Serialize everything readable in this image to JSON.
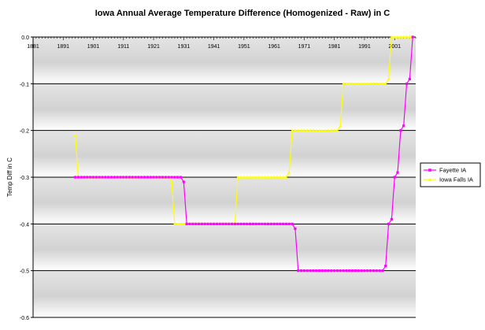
{
  "chart_data": {
    "type": "line",
    "title": "Iowa Annual Average Temperature Difference (Homogenized - Raw) in C",
    "xlabel": "",
    "ylabel": "Temp Diff in C",
    "xlim": [
      1881,
      2008
    ],
    "ylim": [
      -0.6,
      0.0
    ],
    "x_ticks": [
      1881,
      1891,
      1901,
      1911,
      1921,
      1931,
      1941,
      1951,
      1961,
      1971,
      1981,
      1991,
      2001
    ],
    "y_ticks": [
      0.0,
      -0.1,
      -0.2,
      -0.3,
      -0.4,
      -0.5,
      -0.6
    ],
    "y_tick_labels": [
      "0.0",
      "-0.1",
      "-0.2",
      "-0.3",
      "-0.4",
      "-0.5",
      "-0.6"
    ],
    "grid": true,
    "background": "gray-gradient",
    "legend_position": "right",
    "series": [
      {
        "name": "Fayette IA",
        "color": "#ff00ff",
        "marker": "square",
        "points": [
          [
            1895,
            -0.3
          ],
          [
            1896,
            -0.3
          ],
          [
            1897,
            -0.3
          ],
          [
            1898,
            -0.3
          ],
          [
            1899,
            -0.3
          ],
          [
            1900,
            -0.3
          ],
          [
            1901,
            -0.3
          ],
          [
            1902,
            -0.3
          ],
          [
            1903,
            -0.3
          ],
          [
            1904,
            -0.3
          ],
          [
            1905,
            -0.3
          ],
          [
            1906,
            -0.3
          ],
          [
            1907,
            -0.3
          ],
          [
            1908,
            -0.3
          ],
          [
            1909,
            -0.3
          ],
          [
            1910,
            -0.3
          ],
          [
            1911,
            -0.3
          ],
          [
            1912,
            -0.3
          ],
          [
            1913,
            -0.3
          ],
          [
            1914,
            -0.3
          ],
          [
            1915,
            -0.3
          ],
          [
            1916,
            -0.3
          ],
          [
            1917,
            -0.3
          ],
          [
            1918,
            -0.3
          ],
          [
            1919,
            -0.3
          ],
          [
            1920,
            -0.3
          ],
          [
            1921,
            -0.3
          ],
          [
            1922,
            -0.3
          ],
          [
            1923,
            -0.3
          ],
          [
            1924,
            -0.3
          ],
          [
            1925,
            -0.3
          ],
          [
            1926,
            -0.3
          ],
          [
            1927,
            -0.3
          ],
          [
            1928,
            -0.3
          ],
          [
            1929,
            -0.3
          ],
          [
            1930,
            -0.3
          ],
          [
            1931,
            -0.31
          ],
          [
            1932,
            -0.4
          ],
          [
            1933,
            -0.4
          ],
          [
            1934,
            -0.4
          ],
          [
            1935,
            -0.4
          ],
          [
            1936,
            -0.4
          ],
          [
            1937,
            -0.4
          ],
          [
            1938,
            -0.4
          ],
          [
            1939,
            -0.4
          ],
          [
            1940,
            -0.4
          ],
          [
            1941,
            -0.4
          ],
          [
            1942,
            -0.4
          ],
          [
            1943,
            -0.4
          ],
          [
            1944,
            -0.4
          ],
          [
            1945,
            -0.4
          ],
          [
            1946,
            -0.4
          ],
          [
            1947,
            -0.4
          ],
          [
            1948,
            -0.4
          ],
          [
            1949,
            -0.4
          ],
          [
            1950,
            -0.4
          ],
          [
            1951,
            -0.4
          ],
          [
            1952,
            -0.4
          ],
          [
            1953,
            -0.4
          ],
          [
            1954,
            -0.4
          ],
          [
            1955,
            -0.4
          ],
          [
            1956,
            -0.4
          ],
          [
            1957,
            -0.4
          ],
          [
            1958,
            -0.4
          ],
          [
            1959,
            -0.4
          ],
          [
            1960,
            -0.4
          ],
          [
            1961,
            -0.4
          ],
          [
            1962,
            -0.4
          ],
          [
            1963,
            -0.4
          ],
          [
            1964,
            -0.4
          ],
          [
            1965,
            -0.4
          ],
          [
            1966,
            -0.4
          ],
          [
            1967,
            -0.4
          ],
          [
            1968,
            -0.41
          ],
          [
            1969,
            -0.5
          ],
          [
            1970,
            -0.5
          ],
          [
            1971,
            -0.5
          ],
          [
            1972,
            -0.5
          ],
          [
            1973,
            -0.5
          ],
          [
            1974,
            -0.5
          ],
          [
            1975,
            -0.5
          ],
          [
            1976,
            -0.5
          ],
          [
            1977,
            -0.5
          ],
          [
            1978,
            -0.5
          ],
          [
            1979,
            -0.5
          ],
          [
            1980,
            -0.5
          ],
          [
            1981,
            -0.5
          ],
          [
            1982,
            -0.5
          ],
          [
            1983,
            -0.5
          ],
          [
            1984,
            -0.5
          ],
          [
            1985,
            -0.5
          ],
          [
            1986,
            -0.5
          ],
          [
            1987,
            -0.5
          ],
          [
            1988,
            -0.5
          ],
          [
            1989,
            -0.5
          ],
          [
            1990,
            -0.5
          ],
          [
            1991,
            -0.5
          ],
          [
            1992,
            -0.5
          ],
          [
            1993,
            -0.5
          ],
          [
            1994,
            -0.5
          ],
          [
            1995,
            -0.5
          ],
          [
            1996,
            -0.5
          ],
          [
            1997,
            -0.5
          ],
          [
            1998,
            -0.49
          ],
          [
            1999,
            -0.4
          ],
          [
            2000,
            -0.39
          ],
          [
            2001,
            -0.3
          ],
          [
            2002,
            -0.29
          ],
          [
            2003,
            -0.2
          ],
          [
            2004,
            -0.19
          ],
          [
            2005,
            -0.1
          ],
          [
            2006,
            -0.09
          ],
          [
            2007,
            0.0
          ]
        ]
      },
      {
        "name": "Iowa Falls IA",
        "color": "#ffff00",
        "marker": "triangle",
        "points": [
          [
            1895,
            -0.21
          ],
          [
            1896,
            -0.3
          ],
          [
            1897,
            -0.3
          ],
          [
            1898,
            -0.3
          ],
          [
            1899,
            -0.3
          ],
          [
            1900,
            -0.3
          ],
          [
            1901,
            -0.3
          ],
          [
            1902,
            -0.3
          ],
          [
            1903,
            -0.3
          ],
          [
            1904,
            -0.3
          ],
          [
            1905,
            -0.3
          ],
          [
            1906,
            -0.3
          ],
          [
            1907,
            -0.3
          ],
          [
            1908,
            -0.3
          ],
          [
            1909,
            -0.3
          ],
          [
            1910,
            -0.3
          ],
          [
            1911,
            -0.3
          ],
          [
            1912,
            -0.3
          ],
          [
            1913,
            -0.3
          ],
          [
            1914,
            -0.3
          ],
          [
            1915,
            -0.3
          ],
          [
            1916,
            -0.3
          ],
          [
            1917,
            -0.3
          ],
          [
            1918,
            -0.3
          ],
          [
            1919,
            -0.3
          ],
          [
            1920,
            -0.3
          ],
          [
            1921,
            -0.3
          ],
          [
            1922,
            -0.3
          ],
          [
            1923,
            -0.3
          ],
          [
            1924,
            -0.3
          ],
          [
            1925,
            -0.3
          ],
          [
            1926,
            -0.3
          ],
          [
            1927,
            -0.31
          ],
          [
            1928,
            -0.4
          ],
          [
            1929,
            -0.4
          ],
          [
            1930,
            -0.4
          ],
          [
            1931,
            -0.4
          ],
          [
            1932,
            -0.4
          ],
          [
            1933,
            -0.4
          ],
          [
            1934,
            -0.4
          ],
          [
            1935,
            -0.4
          ],
          [
            1936,
            -0.4
          ],
          [
            1937,
            -0.4
          ],
          [
            1938,
            -0.4
          ],
          [
            1939,
            -0.4
          ],
          [
            1940,
            -0.4
          ],
          [
            1941,
            -0.4
          ],
          [
            1942,
            -0.4
          ],
          [
            1943,
            -0.4
          ],
          [
            1944,
            -0.4
          ],
          [
            1945,
            -0.4
          ],
          [
            1946,
            -0.4
          ],
          [
            1947,
            -0.4
          ],
          [
            1948,
            -0.4
          ],
          [
            1949,
            -0.3
          ],
          [
            1950,
            -0.3
          ],
          [
            1951,
            -0.3
          ],
          [
            1952,
            -0.3
          ],
          [
            1953,
            -0.3
          ],
          [
            1954,
            -0.3
          ],
          [
            1955,
            -0.3
          ],
          [
            1956,
            -0.3
          ],
          [
            1957,
            -0.3
          ],
          [
            1958,
            -0.3
          ],
          [
            1959,
            -0.3
          ],
          [
            1960,
            -0.3
          ],
          [
            1961,
            -0.3
          ],
          [
            1962,
            -0.3
          ],
          [
            1963,
            -0.3
          ],
          [
            1964,
            -0.3
          ],
          [
            1965,
            -0.3
          ],
          [
            1966,
            -0.29
          ],
          [
            1967,
            -0.2
          ],
          [
            1968,
            -0.2
          ],
          [
            1969,
            -0.2
          ],
          [
            1970,
            -0.2
          ],
          [
            1971,
            -0.2
          ],
          [
            1972,
            -0.2
          ],
          [
            1973,
            -0.2
          ],
          [
            1974,
            -0.2
          ],
          [
            1975,
            -0.2
          ],
          [
            1976,
            -0.2
          ],
          [
            1977,
            -0.2
          ],
          [
            1978,
            -0.2
          ],
          [
            1979,
            -0.2
          ],
          [
            1980,
            -0.2
          ],
          [
            1981,
            -0.2
          ],
          [
            1982,
            -0.2
          ],
          [
            1983,
            -0.19
          ],
          [
            1984,
            -0.1
          ],
          [
            1985,
            -0.1
          ],
          [
            1986,
            -0.1
          ],
          [
            1987,
            -0.1
          ],
          [
            1988,
            -0.1
          ],
          [
            1989,
            -0.1
          ],
          [
            1990,
            -0.1
          ],
          [
            1991,
            -0.1
          ],
          [
            1992,
            -0.1
          ],
          [
            1993,
            -0.1
          ],
          [
            1994,
            -0.1
          ],
          [
            1995,
            -0.1
          ],
          [
            1996,
            -0.1
          ],
          [
            1997,
            -0.1
          ],
          [
            1998,
            -0.1
          ],
          [
            1999,
            -0.09
          ],
          [
            2000,
            0.0
          ],
          [
            2001,
            0.0
          ],
          [
            2002,
            0.0
          ],
          [
            2003,
            0.0
          ],
          [
            2004,
            0.0
          ],
          [
            2005,
            0.0
          ],
          [
            2006,
            0.0
          ],
          [
            2007,
            0.0
          ]
        ]
      }
    ]
  }
}
